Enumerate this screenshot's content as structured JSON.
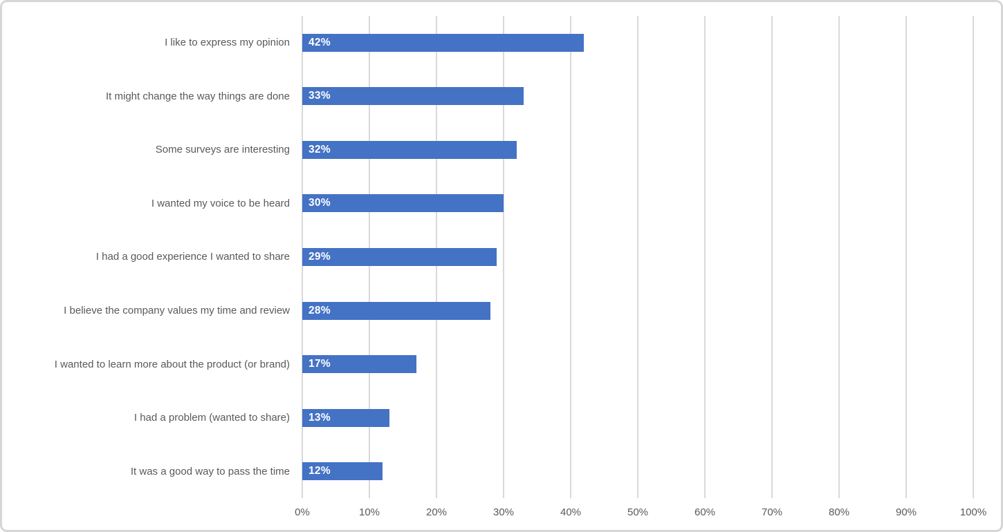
{
  "chart_data": {
    "type": "bar",
    "orientation": "horizontal",
    "title": "",
    "xlabel": "",
    "ylabel": "",
    "categories": [
      "I like to express my opinion",
      "It might change the way things are done",
      "Some surveys are interesting",
      "I wanted my voice to be heard",
      "I had a good experience I wanted to share",
      "I believe the company values my time and review",
      "I wanted to learn more about the product (or brand)",
      "I had a problem (wanted to share)",
      "It was a good way to pass the time"
    ],
    "values": [
      42,
      33,
      32,
      30,
      29,
      28,
      17,
      13,
      12
    ],
    "data_labels": [
      "42%",
      "33%",
      "32%",
      "30%",
      "29%",
      "28%",
      "17%",
      "13%",
      "12%"
    ],
    "xlim": [
      0,
      100
    ],
    "x_tick_values": [
      0,
      10,
      20,
      30,
      40,
      50,
      60,
      70,
      80,
      90,
      100
    ],
    "x_tick_labels": [
      "0%",
      "10%",
      "20%",
      "30%",
      "40%",
      "50%",
      "60%",
      "70%",
      "80%",
      "90%",
      "100%"
    ],
    "legend": "none",
    "grid": "vertical gridlines at 10% intervals",
    "colors": {
      "bar": "#4472C4",
      "gridline": "#D9D9D9",
      "category_label": "#595959",
      "tick_label": "#595959",
      "data_label": "#FFFFFF",
      "frame_border": "#D6D6D6",
      "background": "#FFFFFF"
    }
  }
}
